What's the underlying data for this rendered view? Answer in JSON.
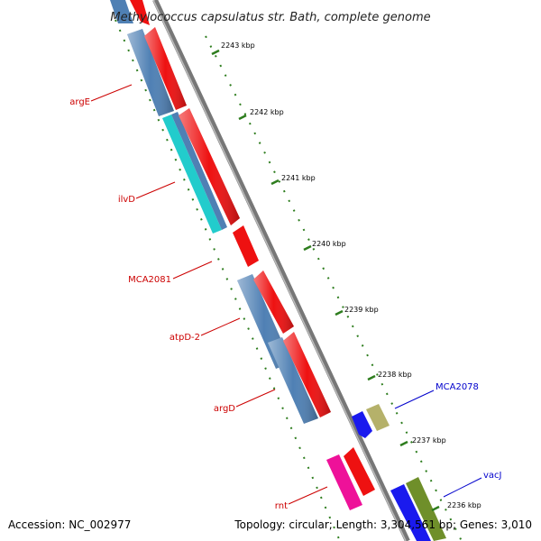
{
  "title": "Methylococcus capsulatus str. Bath, complete genome",
  "footer": {
    "accession": "Accession: NC_002977",
    "summary": "Topology: circular; Length: 3,304,561 bp; Genes: 3,010"
  },
  "colors": {
    "background": "#ffffff",
    "backbone": "#888888",
    "tick": "#2e7d1e",
    "forward_gene": "#ee1111",
    "reverse_gene": "#4f80b4",
    "reverse_label": "#cc0000",
    "forward_label": "#0000cc"
  },
  "ticks": [
    {
      "label": "2243 kbp"
    },
    {
      "label": "2242 kbp"
    },
    {
      "label": "2241 kbp"
    },
    {
      "label": "2240 kbp"
    },
    {
      "label": "2239 kbp"
    },
    {
      "label": "2238 kbp"
    },
    {
      "label": "2237 kbp"
    },
    {
      "label": "2236 kbp"
    }
  ],
  "gene_labels": [
    {
      "name": "argE",
      "strand": "reverse"
    },
    {
      "name": "ilvD",
      "strand": "reverse"
    },
    {
      "name": "MCA2081",
      "strand": "reverse"
    },
    {
      "name": "atpD-2",
      "strand": "reverse"
    },
    {
      "name": "argD",
      "strand": "reverse"
    },
    {
      "name": "rnt",
      "strand": "reverse"
    },
    {
      "name": "MCA2078",
      "strand": "forward"
    },
    {
      "name": "vacJ",
      "strand": "forward"
    }
  ]
}
